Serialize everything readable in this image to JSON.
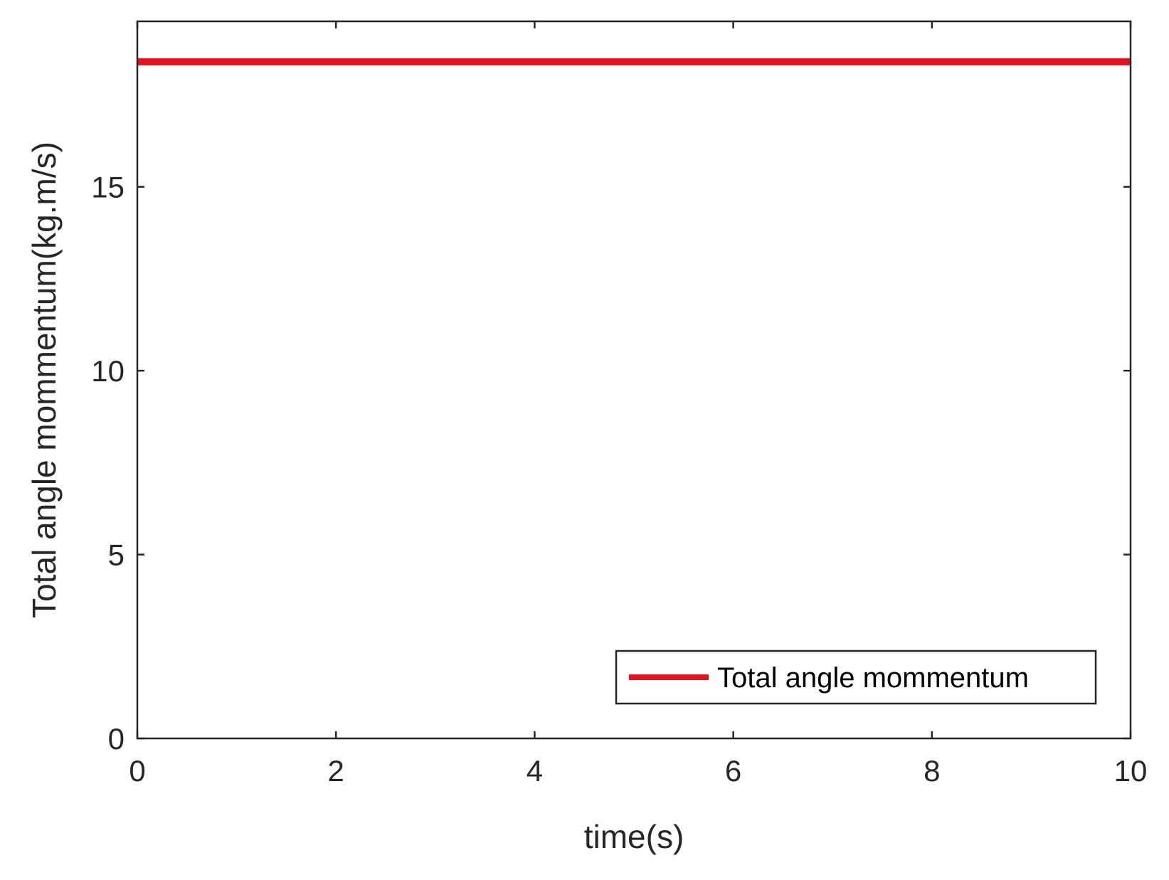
{
  "chart_data": {
    "type": "line",
    "xlabel": "time(s)",
    "ylabel": "Total angle mommentum(kg.m/s)",
    "xlim": [
      0,
      10
    ],
    "ylim": [
      0,
      19.5
    ],
    "x_ticks": [
      0,
      2,
      4,
      6,
      8,
      10
    ],
    "x_tick_labels": [
      "0",
      "2",
      "4",
      "6",
      "8",
      "10"
    ],
    "y_ticks": [
      0,
      5,
      10,
      15
    ],
    "y_tick_labels": [
      "0",
      "5",
      "10",
      "15"
    ],
    "grid": false,
    "legend_position": "bottom-right",
    "series": [
      {
        "name": "Total angle mommentum",
        "color": "#e0141e",
        "x": [
          0,
          10
        ],
        "y": [
          18.4,
          18.4
        ]
      }
    ]
  }
}
